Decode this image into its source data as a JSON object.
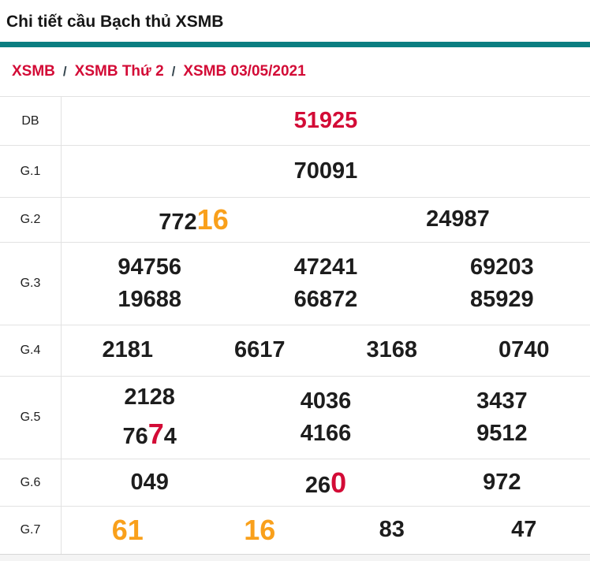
{
  "header": {
    "title": "Chi tiết cầu Bạch thủ XSMB"
  },
  "breadcrumb": {
    "separator": "/",
    "items": [
      "XSMB",
      "XSMB Thứ 2",
      "XSMB 03/05/2021"
    ]
  },
  "colors": {
    "accent_teal": "#0b7e81",
    "highlight_red": "#d30b36",
    "highlight_orange": "#f9a01b",
    "text_black": "#1d1d1d",
    "border_gray": "#e2e2e2"
  },
  "table": {
    "rows": [
      {
        "label": "DB",
        "cells": [
          {
            "parts": [
              {
                "t": "51925",
                "c": "red"
              }
            ]
          }
        ]
      },
      {
        "label": "G.1",
        "cells": [
          {
            "parts": [
              {
                "t": "70091"
              }
            ]
          }
        ]
      },
      {
        "label": "G.2",
        "cells": [
          {
            "parts": [
              {
                "t": "772"
              },
              {
                "t": "16",
                "c": "orange-big"
              }
            ]
          },
          {
            "parts": [
              {
                "t": "24987"
              }
            ]
          }
        ]
      },
      {
        "label": "G.3",
        "cells": [
          {
            "top": [
              {
                "t": "94756"
              }
            ],
            "bottom": [
              {
                "t": "19688"
              }
            ]
          },
          {
            "top": [
              {
                "t": "47241"
              }
            ],
            "bottom": [
              {
                "t": "66872"
              }
            ]
          },
          {
            "top": [
              {
                "t": "69203"
              }
            ],
            "bottom": [
              {
                "t": "85929"
              }
            ]
          }
        ]
      },
      {
        "label": "G.4",
        "cells": [
          {
            "parts": [
              {
                "t": "2181"
              }
            ]
          },
          {
            "parts": [
              {
                "t": "6617"
              }
            ]
          },
          {
            "parts": [
              {
                "t": "3168"
              }
            ]
          },
          {
            "parts": [
              {
                "t": "0740"
              }
            ]
          }
        ]
      },
      {
        "label": "G.5",
        "cells": [
          {
            "top": [
              {
                "t": "2128"
              }
            ],
            "bottom": [
              {
                "t": "76"
              },
              {
                "t": "7",
                "c": "red-big"
              },
              {
                "t": "4"
              }
            ]
          },
          {
            "top": [
              {
                "t": "4036"
              }
            ],
            "bottom": [
              {
                "t": "4166"
              }
            ]
          },
          {
            "top": [
              {
                "t": "3437"
              }
            ],
            "bottom": [
              {
                "t": "9512"
              }
            ]
          }
        ]
      },
      {
        "label": "G.6",
        "cells": [
          {
            "parts": [
              {
                "t": "049"
              }
            ]
          },
          {
            "parts": [
              {
                "t": "26"
              },
              {
                "t": "0",
                "c": "red-big"
              }
            ]
          },
          {
            "parts": [
              {
                "t": "972"
              }
            ]
          }
        ]
      },
      {
        "label": "G.7",
        "cells": [
          {
            "parts": [
              {
                "t": "61",
                "c": "orange-big"
              }
            ]
          },
          {
            "parts": [
              {
                "t": "16",
                "c": "orange-big"
              }
            ]
          },
          {
            "parts": [
              {
                "t": "83"
              }
            ]
          },
          {
            "parts": [
              {
                "t": "47"
              }
            ]
          }
        ]
      }
    ]
  }
}
